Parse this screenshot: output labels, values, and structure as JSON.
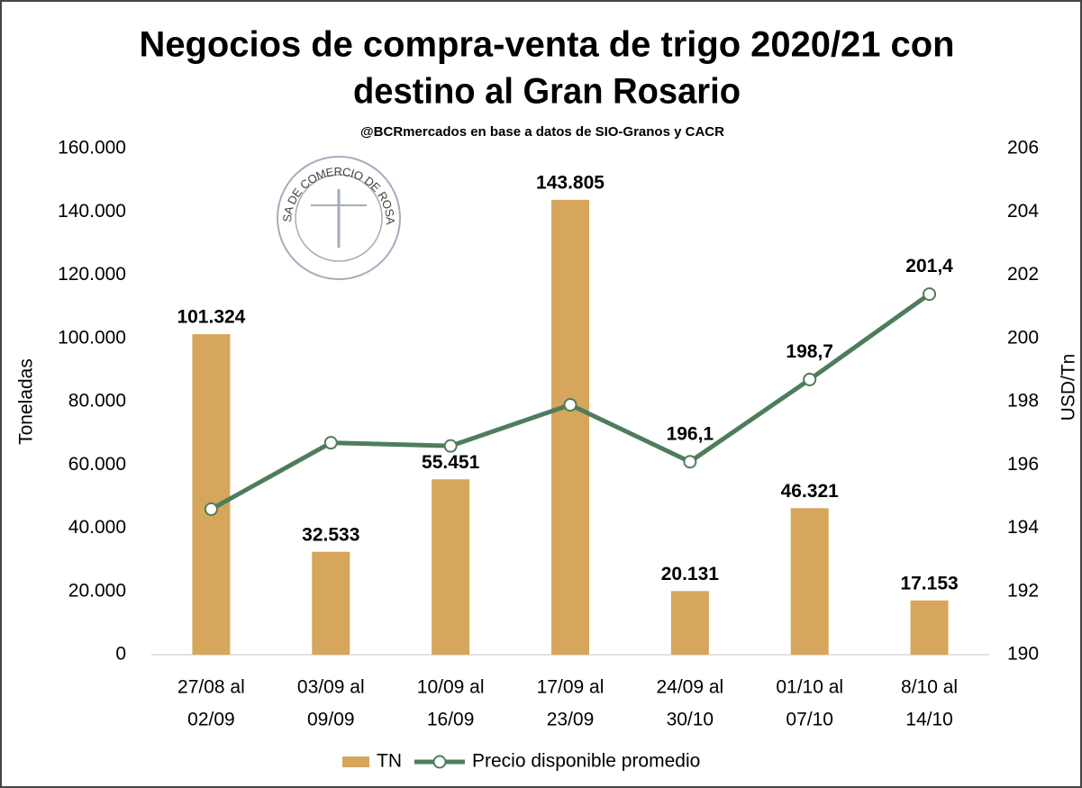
{
  "chart_data": {
    "type": "bar-line",
    "title": [
      "Negocios de compra-venta de trigo 2020/21 con",
      "destino al Gran Rosario"
    ],
    "subtitle": "@BCRmercados en base a datos de SIO-Granos y CACR",
    "logo_text": "BOLSA DE COMERCIO DE ROSARIO",
    "y_label": "Toneladas",
    "y2_label": "USD/Tn",
    "categories": [
      [
        "27/08 al",
        "02/09"
      ],
      [
        "03/09 al",
        "09/09"
      ],
      [
        "10/09 al",
        "16/09"
      ],
      [
        "17/09 al",
        "23/09"
      ],
      [
        "24/09 al",
        "30/10"
      ],
      [
        "01/10 al",
        "07/10"
      ],
      [
        "8/10 al",
        "14/10"
      ]
    ],
    "series": [
      {
        "name": "TN",
        "type": "bar",
        "color": "#d6a65c",
        "axis": "y",
        "values": [
          101324,
          32533,
          55451,
          143805,
          20131,
          46321,
          17153
        ],
        "value_labels": [
          "101.324",
          "32.533",
          "55.451",
          "143.805",
          "20.131",
          "46.321",
          "17.153"
        ]
      },
      {
        "name": "Precio disponible promedio",
        "type": "line",
        "color": "#4e7d5b",
        "axis": "y2",
        "values": [
          194.6,
          196.7,
          196.6,
          197.9,
          196.1,
          198.7,
          201.4
        ],
        "value_labels": [
          null,
          null,
          null,
          null,
          "196,1",
          "198,7",
          "201,4"
        ]
      }
    ],
    "ylim": [
      0,
      160000
    ],
    "yticks": [
      0,
      {
        "value": 20000,
        "label": "20.000"
      },
      {
        "value": 40000,
        "label": "40.000"
      },
      {
        "value": 60000,
        "label": "60.000"
      },
      {
        "value": 80000,
        "label": "80.000"
      },
      {
        "value": 100000,
        "label": "100.000"
      },
      {
        "value": 120000,
        "label": "120.000"
      },
      {
        "value": 140000,
        "label": "140.000"
      },
      {
        "value": 160000,
        "label": "160.000"
      }
    ],
    "y2lim": [
      190,
      206
    ],
    "y2ticks": [
      190,
      192,
      194,
      196,
      198,
      200,
      202,
      204,
      206
    ],
    "grid": false,
    "legend": "bottom"
  }
}
